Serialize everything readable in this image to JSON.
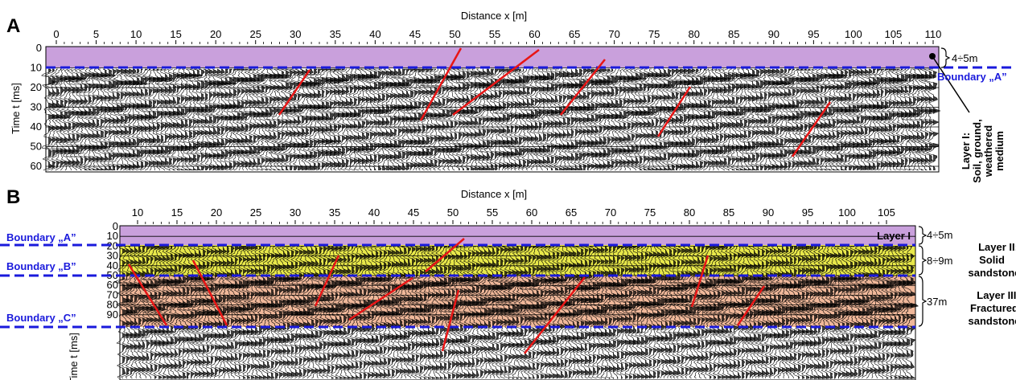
{
  "panel_a": {
    "letter": "A",
    "x_title": "Distance  x [m]",
    "y_title": "Time  t [ms]",
    "x_ticks": [
      "0",
      "5",
      "10",
      "15",
      "20",
      "25",
      "30",
      "35",
      "40",
      "45",
      "50",
      "55",
      "60",
      "65",
      "70",
      "75",
      "80",
      "85",
      "90",
      "95",
      "100",
      "105",
      "110"
    ],
    "y_ticks": [
      "0",
      "10",
      "20",
      "30",
      "40",
      "50",
      "60"
    ],
    "thickness": "4÷5m",
    "boundary": "Boundary „A”",
    "layer_label": [
      "Layer I:",
      "Soil, ground,",
      "weathered",
      "medium"
    ]
  },
  "panel_b": {
    "letter": "B",
    "x_title": "Distance  x [m]",
    "y_title": "Time  t [ms]",
    "x_ticks": [
      "10",
      "15",
      "20",
      "25",
      "30",
      "35",
      "40",
      "45",
      "50",
      "55",
      "60",
      "65",
      "70",
      "75",
      "80",
      "85",
      "90",
      "95",
      "100",
      "105"
    ],
    "y_ticks": [
      "0",
      "10",
      "20",
      "30",
      "40",
      "50",
      "60",
      "70",
      "80",
      "90"
    ],
    "boundaries": [
      "Boundary „A”",
      "Boundary „B”",
      "Boundary „C”"
    ],
    "layer_tag": "Layer I",
    "thicknesses": [
      "4÷5m",
      "8÷9m",
      "37m"
    ],
    "layer2": [
      "Layer II:",
      "Solid",
      "sandstone"
    ],
    "layer3": [
      "Layer III:",
      "Fractured",
      "sandstone"
    ]
  },
  "colors": {
    "layer_1": "#c9a0dc",
    "layer_2": "#e8e84a",
    "layer_3": "#f0b89a",
    "boundary": "#1a1adc",
    "fault": "#e81515",
    "trace": "#000000"
  }
}
